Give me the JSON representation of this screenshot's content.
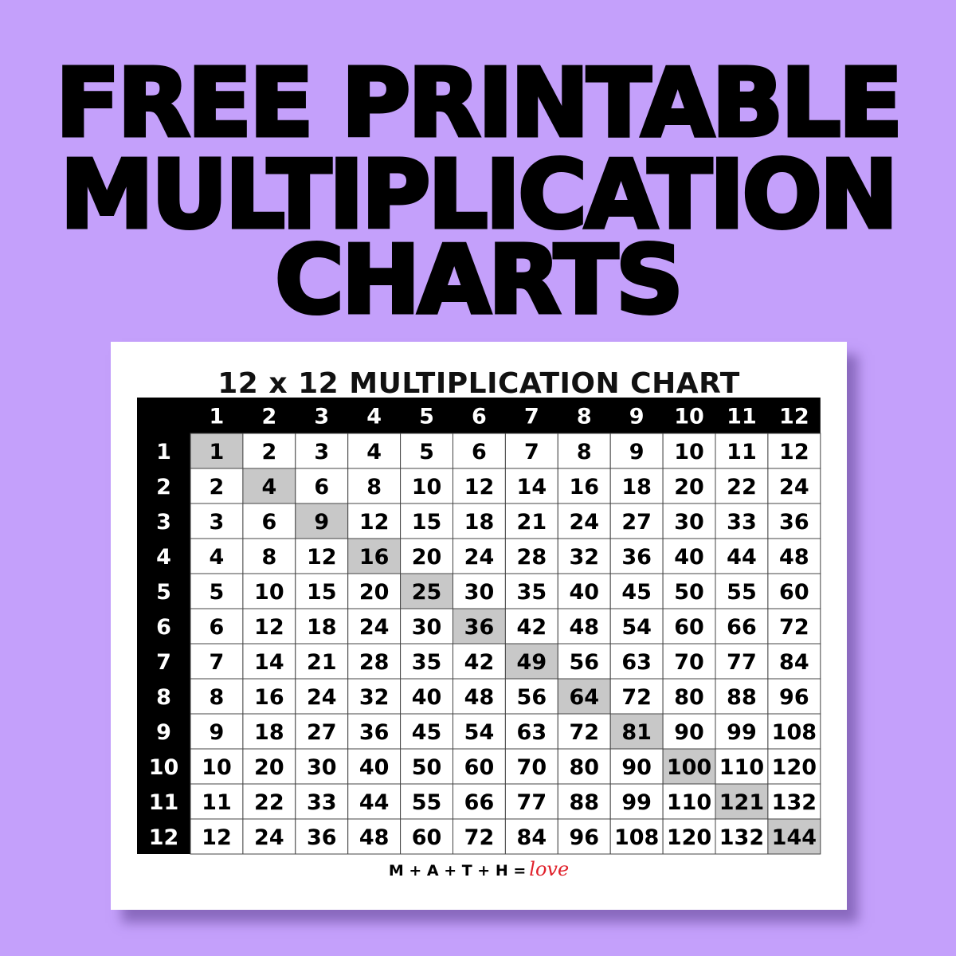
{
  "headline": [
    "FREE PRINTABLE",
    "MULTIPLICATION",
    "CHARTS"
  ],
  "colors": {
    "background": "#c4a0fb",
    "header": "#000000",
    "diagonal": "#c8c8c8",
    "love": "#e0202a"
  },
  "logo": {
    "text": "M + A + T + H =",
    "script": "love"
  },
  "chart_data": {
    "type": "table",
    "title": "12 x 12 MULTIPLICATION CHART",
    "column_headers": [
      1,
      2,
      3,
      4,
      5,
      6,
      7,
      8,
      9,
      10,
      11,
      12
    ],
    "row_headers": [
      1,
      2,
      3,
      4,
      5,
      6,
      7,
      8,
      9,
      10,
      11,
      12
    ],
    "highlight": "diagonal",
    "rows": [
      [
        1,
        2,
        3,
        4,
        5,
        6,
        7,
        8,
        9,
        10,
        11,
        12
      ],
      [
        2,
        4,
        6,
        8,
        10,
        12,
        14,
        16,
        18,
        20,
        22,
        24
      ],
      [
        3,
        6,
        9,
        12,
        15,
        18,
        21,
        24,
        27,
        30,
        33,
        36
      ],
      [
        4,
        8,
        12,
        16,
        20,
        24,
        28,
        32,
        36,
        40,
        44,
        48
      ],
      [
        5,
        10,
        15,
        20,
        25,
        30,
        35,
        40,
        45,
        50,
        55,
        60
      ],
      [
        6,
        12,
        18,
        24,
        30,
        36,
        42,
        48,
        54,
        60,
        66,
        72
      ],
      [
        7,
        14,
        21,
        28,
        35,
        42,
        49,
        56,
        63,
        70,
        77,
        84
      ],
      [
        8,
        16,
        24,
        32,
        40,
        48,
        56,
        64,
        72,
        80,
        88,
        96
      ],
      [
        9,
        18,
        27,
        36,
        45,
        54,
        63,
        72,
        81,
        90,
        99,
        108
      ],
      [
        10,
        20,
        30,
        40,
        50,
        60,
        70,
        80,
        90,
        100,
        110,
        120
      ],
      [
        11,
        22,
        33,
        44,
        55,
        66,
        77,
        88,
        99,
        110,
        121,
        132
      ],
      [
        12,
        24,
        36,
        48,
        60,
        72,
        84,
        96,
        108,
        120,
        132,
        144
      ]
    ]
  }
}
